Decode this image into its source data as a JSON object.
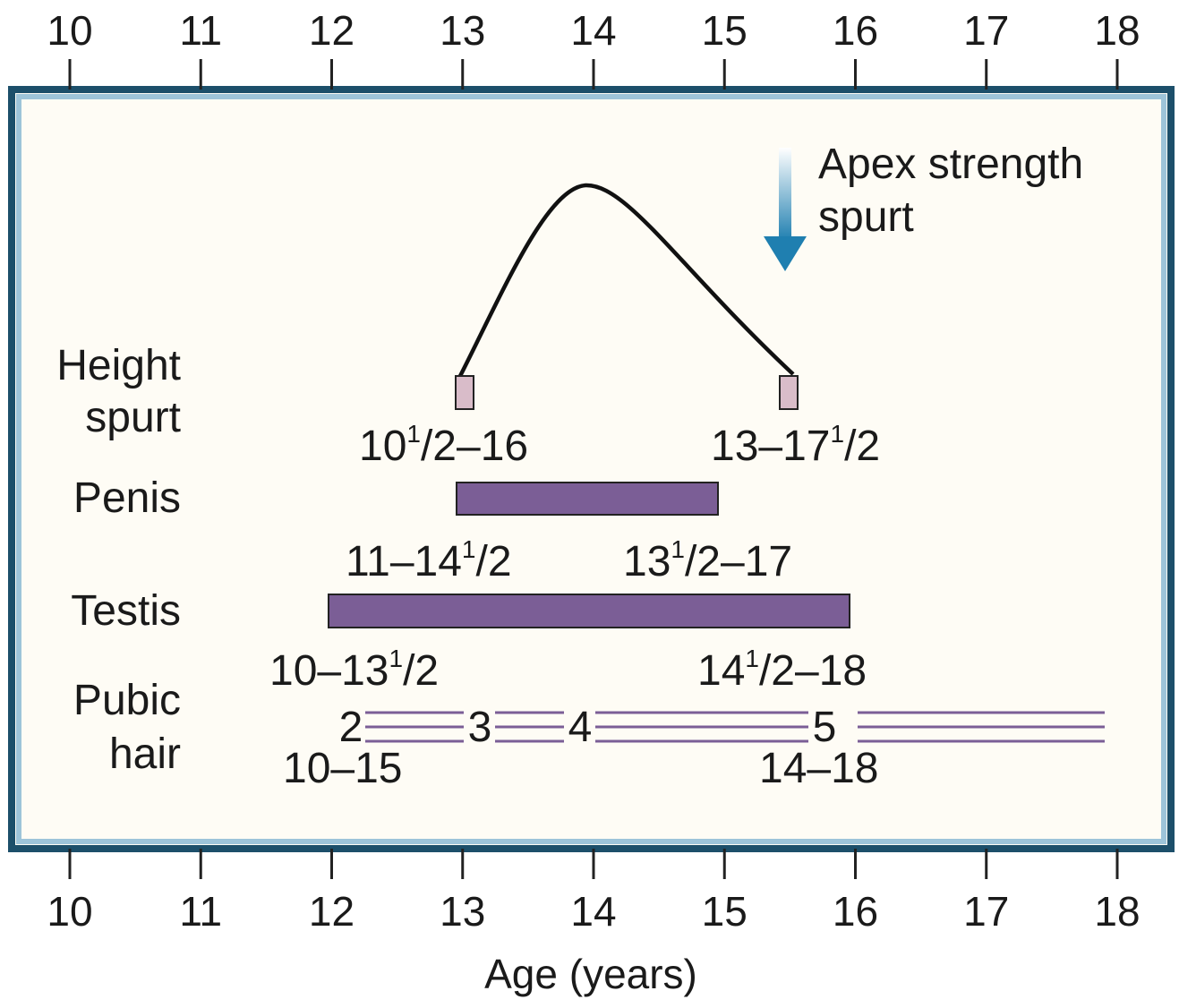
{
  "axis": {
    "ticks": [
      "10",
      "11",
      "12",
      "13",
      "14",
      "15",
      "16",
      "17",
      "18"
    ],
    "xlabel": "Age (years)",
    "range": [
      10,
      18
    ]
  },
  "apex": {
    "line1": "Apex strength",
    "line2": "spurt",
    "age": 15.5
  },
  "rows": {
    "height": {
      "label1": "Height",
      "label2": "spurt",
      "range_start": 13,
      "range_end": 15.5,
      "peak_age": 14,
      "start_text": {
        "whole": "10",
        "sup": "1",
        "frac": "/2",
        "rest": "–16"
      },
      "end_text": {
        "whole": "13–17",
        "sup": "1",
        "frac": "/2",
        "rest": ""
      }
    },
    "penis": {
      "label": "Penis",
      "bar_start": 13,
      "bar_end": 15,
      "start_text": {
        "whole": "11–14",
        "sup": "1",
        "frac": "/2",
        "rest": ""
      },
      "end_text": {
        "whole": "13",
        "sup": "1",
        "frac": "/2",
        "rest": "–17"
      }
    },
    "testis": {
      "label": "Testis",
      "bar_start": 12,
      "bar_end": 16,
      "start_text": {
        "whole": "10–13",
        "sup": "1",
        "frac": "/2",
        "rest": ""
      },
      "end_text": {
        "whole": "14",
        "sup": "1",
        "frac": "/2",
        "rest": "–18"
      }
    },
    "pubic": {
      "label1": "Pubic",
      "label2": "hair",
      "stages": [
        "2",
        "3",
        "4",
        "5"
      ],
      "start_text": "10–15",
      "end_text": "14–18"
    }
  },
  "colors": {
    "frame": "#1c4f6a",
    "frame_inner": "#9dc4d9",
    "panel": "#fefcf5",
    "bar_fill": "#7b5e96",
    "marker_fill": "#d9bcc9",
    "pubic_line": "#7b5e96",
    "arrow": "#1f7fb0"
  }
}
